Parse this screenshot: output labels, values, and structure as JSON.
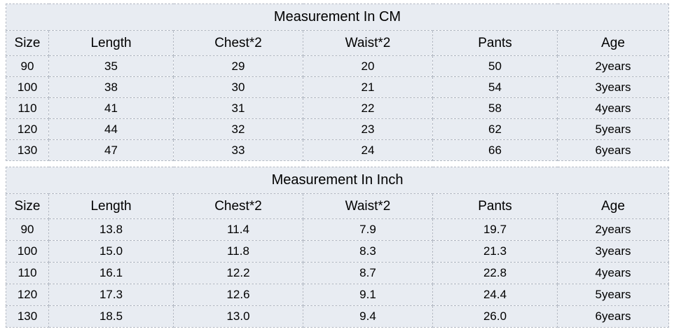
{
  "colors": {
    "cell_background": "#e8ecf2",
    "border": "#b3b9c3",
    "text": "#000000",
    "page_background": "#ffffff"
  },
  "tables": [
    {
      "title": "Measurement In CM",
      "headers": [
        "Size",
        "Length",
        "Chest*2",
        "Waist*2",
        "Pants",
        "Age"
      ],
      "rows": [
        [
          "90",
          "35",
          "29",
          "20",
          "50",
          "2years"
        ],
        [
          "100",
          "38",
          "30",
          "21",
          "54",
          "3years"
        ],
        [
          "110",
          "41",
          "31",
          "22",
          "58",
          "4years"
        ],
        [
          "120",
          "44",
          "32",
          "23",
          "62",
          "5years"
        ],
        [
          "130",
          "47",
          "33",
          "24",
          "66",
          "6years"
        ]
      ]
    },
    {
      "title": "Measurement In Inch",
      "headers": [
        "Size",
        "Length",
        "Chest*2",
        "Waist*2",
        "Pants",
        "Age"
      ],
      "rows": [
        [
          "90",
          "13.8",
          "11.4",
          "7.9",
          "19.7",
          "2years"
        ],
        [
          "100",
          "15.0",
          "11.8",
          "8.3",
          "21.3",
          "3years"
        ],
        [
          "110",
          "16.1",
          "12.2",
          "8.7",
          "22.8",
          "4years"
        ],
        [
          "120",
          "17.3",
          "12.6",
          "9.1",
          "24.4",
          "5years"
        ],
        [
          "130",
          "18.5",
          "13.0",
          "9.4",
          "26.0",
          "6years"
        ]
      ]
    }
  ]
}
